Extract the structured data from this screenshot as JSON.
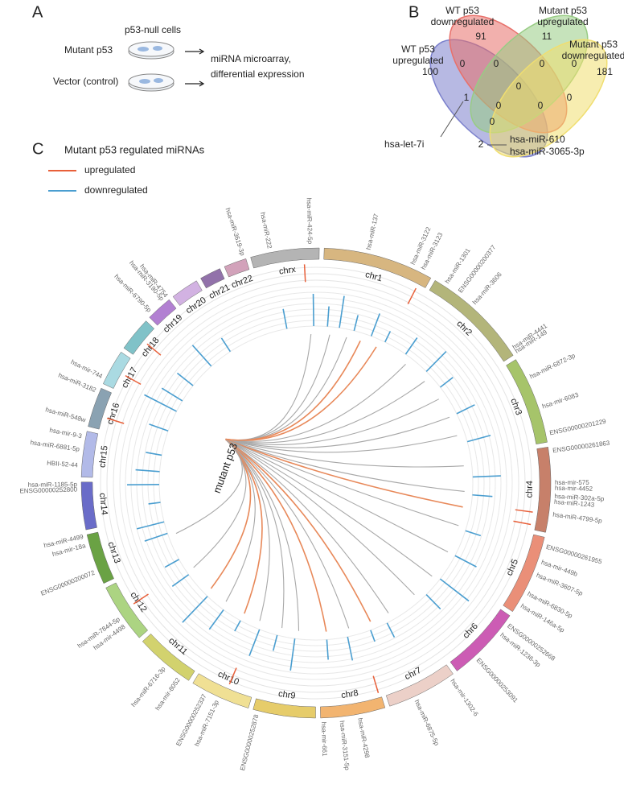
{
  "panel_a": {
    "letter": "A",
    "cells_label": "p53-null cells",
    "rows": [
      "Mutant p53",
      "Vector (control)"
    ],
    "output": [
      "miRNA microarray,",
      "differential expression"
    ]
  },
  "panel_b": {
    "letter": "B",
    "sets": [
      {
        "name": [
          "WT p53",
          "upregulated"
        ],
        "color": "#7b80cc"
      },
      {
        "name": [
          "WT p53",
          "downregulated"
        ],
        "color": "#e8706a"
      },
      {
        "name": [
          "Mutant p53",
          "upregulated"
        ],
        "color": "#98cc84"
      },
      {
        "name": [
          "Mutant p53",
          "downregulated"
        ],
        "color": "#f0de70"
      }
    ],
    "counts": [
      91,
      11,
      100,
      181,
      0,
      0,
      0,
      0,
      0,
      0,
      0,
      1,
      0,
      2,
      0
    ],
    "annotations": [
      "hsa-let-7i",
      "hsa-miR-610",
      "hsa-miR-3065-3p"
    ]
  },
  "panel_c": {
    "letter": "C",
    "legend_title": "Mutant p53 regulated miRNAs",
    "legend": [
      {
        "name": "upregulated",
        "color": "#e8603a"
      },
      {
        "name": "downregulated",
        "color": "#4a9ed0"
      }
    ],
    "link_colors": {
      "up": "#e8895a",
      "down": "#a8a8a8"
    },
    "source_label": "mutant p53",
    "source": {
      "chr": "chr17",
      "pos": 7.5
    },
    "chromosomes": [
      {
        "name": "chr1",
        "length": 249,
        "color": "#d7b680"
      },
      {
        "name": "chr2",
        "length": 243,
        "color": "#b3b57a"
      },
      {
        "name": "chr3",
        "length": 198,
        "color": "#a6c46a"
      },
      {
        "name": "chr4",
        "length": 191,
        "color": "#c7806a"
      },
      {
        "name": "chr5",
        "length": 181,
        "color": "#ea8f78"
      },
      {
        "name": "chr6",
        "length": 171,
        "color": "#cc5cb4"
      },
      {
        "name": "chr7",
        "length": 159,
        "color": "#ecd0c8"
      },
      {
        "name": "chr8",
        "length": 146,
        "color": "#f2b470"
      },
      {
        "name": "chr9",
        "length": 141,
        "color": "#e6cc6a"
      },
      {
        "name": "chr10",
        "length": 136,
        "color": "#f0e094"
      },
      {
        "name": "chr11",
        "length": 135,
        "color": "#d2d26e"
      },
      {
        "name": "chr12",
        "length": 134,
        "color": "#acd482"
      },
      {
        "name": "chr13",
        "length": 115,
        "color": "#6aa244"
      },
      {
        "name": "chr14",
        "length": 107,
        "color": "#6a6cc8"
      },
      {
        "name": "chr15",
        "length": 103,
        "color": "#b2bae8"
      },
      {
        "name": "chr16",
        "length": 90,
        "color": "#8aa2b2"
      },
      {
        "name": "chr17",
        "length": 81,
        "color": "#aadae2"
      },
      {
        "name": "chr18",
        "length": 78,
        "color": "#80c2c8"
      },
      {
        "name": "chr19",
        "length": 59,
        "color": "#b280d2"
      },
      {
        "name": "chr20",
        "length": 63,
        "color": "#d2b2e2"
      },
      {
        "name": "chr21",
        "length": 48,
        "color": "#9272aa"
      },
      {
        "name": "chr22",
        "length": 51,
        "color": "#d2a2ba"
      },
      {
        "name": "chrx",
        "length": 155,
        "color": "#b4b4b4"
      }
    ],
    "up_marks": [
      {
        "chr": "chrx",
        "pos": 120
      },
      {
        "chr": "chr1",
        "pos": 230
      },
      {
        "chr": "chr4",
        "pos": 150
      },
      {
        "chr": "chr4",
        "pos": 180
      },
      {
        "chr": "chr8",
        "pos": 5
      },
      {
        "chr": "chr10",
        "pos": 60
      },
      {
        "chr": "chr12",
        "pos": 70
      },
      {
        "chr": "chr16",
        "pos": 30
      },
      {
        "chr": "chr17",
        "pos": 40
      },
      {
        "chr": "chr18",
        "pos": 40
      }
    ],
    "bars": [
      {
        "chr": "chr1",
        "pos": 20,
        "value": 0.5
      },
      {
        "chr": "chr1",
        "pos": 60,
        "value": 0.8
      },
      {
        "chr": "chr1",
        "pos": 110,
        "value": 0.4
      },
      {
        "chr": "chr1",
        "pos": 170,
        "value": 0.6
      },
      {
        "chr": "chr1",
        "pos": 220,
        "value": 0.3
      },
      {
        "chr": "chr2",
        "pos": 40,
        "value": 0.5
      },
      {
        "chr": "chr2",
        "pos": 130,
        "value": 0.7
      },
      {
        "chr": "chr2",
        "pos": 200,
        "value": 0.4
      },
      {
        "chr": "chr3",
        "pos": 50,
        "value": 0.5
      },
      {
        "chr": "chr3",
        "pos": 150,
        "value": 0.6
      },
      {
        "chr": "chr4",
        "pos": 60,
        "value": 0.7
      },
      {
        "chr": "chr4",
        "pos": 120,
        "value": 0.5
      },
      {
        "chr": "chr5",
        "pos": 40,
        "value": 0.4
      },
      {
        "chr": "chr5",
        "pos": 130,
        "value": 0.6
      },
      {
        "chr": "chr6",
        "pos": 30,
        "value": 0.9
      },
      {
        "chr": "chr6",
        "pos": 100,
        "value": 0.5
      },
      {
        "chr": "chr7",
        "pos": 80,
        "value": 0.4
      },
      {
        "chr": "chr7",
        "pos": 140,
        "value": 0.3
      },
      {
        "chr": "chr8",
        "pos": 50,
        "value": 0.6
      },
      {
        "chr": "chr8",
        "pos": 120,
        "value": 0.5
      },
      {
        "chr": "chr9",
        "pos": 70,
        "value": 0.8
      },
      {
        "chr": "chr9",
        "pos": 130,
        "value": 0.4
      },
      {
        "chr": "chr10",
        "pos": 40,
        "value": 0.7
      },
      {
        "chr": "chr10",
        "pos": 110,
        "value": 0.3
      },
      {
        "chr": "chr11",
        "pos": 30,
        "value": 0.6
      },
      {
        "chr": "chr11",
        "pos": 100,
        "value": 0.9
      },
      {
        "chr": "chr12",
        "pos": 50,
        "value": 0.5
      },
      {
        "chr": "chr12",
        "pos": 110,
        "value": 0.4
      },
      {
        "chr": "chr13",
        "pos": 60,
        "value": 0.6
      },
      {
        "chr": "chr13",
        "pos": 100,
        "value": 0.7
      },
      {
        "chr": "chr14",
        "pos": 40,
        "value": 0.3
      },
      {
        "chr": "chr14",
        "pos": 100,
        "value": 0.8
      },
      {
        "chr": "chr15",
        "pos": 25,
        "value": 0.6
      },
      {
        "chr": "chr15",
        "pos": 80,
        "value": 0.4
      },
      {
        "chr": "chr16",
        "pos": 50,
        "value": 0.5
      },
      {
        "chr": "chr17",
        "pos": 20,
        "value": 0.9
      },
      {
        "chr": "chr17",
        "pos": 60,
        "value": 0.6
      },
      {
        "chr": "chr18",
        "pos": 30,
        "value": 0.5
      },
      {
        "chr": "chr19",
        "pos": 30,
        "value": 0.7
      },
      {
        "chr": "chr20",
        "pos": 40,
        "value": 0.4
      },
      {
        "chr": "chrx",
        "pos": 50,
        "value": 0.5
      },
      {
        "chr": "chrx",
        "pos": 140,
        "value": 0.8
      }
    ],
    "links": [
      {
        "chr": "chr1",
        "pos": 30,
        "reg": "down"
      },
      {
        "chr": "chr1",
        "pos": 90,
        "reg": "down"
      },
      {
        "chr": "chr1",
        "pos": 200,
        "reg": "up"
      },
      {
        "chr": "chr2",
        "pos": 60,
        "reg": "down"
      },
      {
        "chr": "chr2",
        "pos": 150,
        "reg": "down"
      },
      {
        "chr": "chr2",
        "pos": 230,
        "reg": "down"
      },
      {
        "chr": "chr3",
        "pos": 50,
        "reg": "down"
      },
      {
        "chr": "chr3",
        "pos": 120,
        "reg": "down"
      },
      {
        "chr": "chr4",
        "pos": 20,
        "reg": "down"
      },
      {
        "chr": "chr4",
        "pos": 110,
        "reg": "down"
      },
      {
        "chr": "chr4",
        "pos": 165,
        "reg": "up"
      },
      {
        "chr": "chr5",
        "pos": 30,
        "reg": "down"
      },
      {
        "chr": "chr5",
        "pos": 130,
        "reg": "down"
      },
      {
        "chr": "chr6",
        "pos": 40,
        "reg": "down"
      },
      {
        "chr": "chr6",
        "pos": 130,
        "reg": "down"
      },
      {
        "chr": "chr7",
        "pos": 60,
        "reg": "down"
      },
      {
        "chr": "chr7",
        "pos": 130,
        "reg": "up"
      },
      {
        "chr": "chr8",
        "pos": 40,
        "reg": "down"
      },
      {
        "chr": "chr8",
        "pos": 120,
        "reg": "up"
      },
      {
        "chr": "chr9",
        "pos": 60,
        "reg": "down"
      },
      {
        "chr": "chr9",
        "pos": 120,
        "reg": "down"
      },
      {
        "chr": "chr10",
        "pos": 50,
        "reg": "down"
      },
      {
        "chr": "chr10",
        "pos": 110,
        "reg": "up"
      },
      {
        "chr": "chr11",
        "pos": 40,
        "reg": "down"
      },
      {
        "chr": "chr11",
        "pos": 110,
        "reg": "up"
      },
      {
        "chr": "chr12",
        "pos": 60,
        "reg": "down"
      },
      {
        "chr": "chr13",
        "pos": 50,
        "reg": "down"
      },
      {
        "chr": "chrx",
        "pos": 130,
        "reg": "down"
      },
      {
        "chr": "chr1",
        "pos": 140,
        "reg": "up"
      }
    ],
    "gene_labels": [
      {
        "chr": "chr1",
        "pos": 98,
        "label": "hsa-miR-137"
      },
      {
        "chr": "chr1",
        "pos": 200,
        "label": "hsa-miR-3122"
      },
      {
        "chr": "chr1",
        "pos": 225,
        "label": "hsa-miR-3123"
      },
      {
        "chr": "chr2",
        "pos": 25,
        "label": "hsa-miR-1301"
      },
      {
        "chr": "chr2",
        "pos": 60,
        "label": "ENSG00000200377"
      },
      {
        "chr": "chr2",
        "pos": 100,
        "label": "hsa-miR-3606"
      },
      {
        "chr": "chr2",
        "pos": 230,
        "label": "hsa-miR-4441"
      },
      {
        "chr": "chr2",
        "pos": 240,
        "label": "hsa-miR-149"
      },
      {
        "chr": "chr3",
        "pos": 50,
        "label": "hsa-miR-6872-3p"
      },
      {
        "chr": "chr3",
        "pos": 120,
        "label": "hsa-mir-6083"
      },
      {
        "chr": "chr3",
        "pos": 180,
        "label": "ENSG00000201229"
      },
      {
        "chr": "chr4",
        "pos": 10,
        "label": "ENSG00000261863"
      },
      {
        "chr": "chr4",
        "pos": 80,
        "label": "hsa-mir-575"
      },
      {
        "chr": "chr4",
        "pos": 92,
        "label": "hsa-mir-4452"
      },
      {
        "chr": "chr4",
        "pos": 110,
        "label": "hsa-miR-302a-5p"
      },
      {
        "chr": "chr4",
        "pos": 122,
        "label": "hsa-miR-1243"
      },
      {
        "chr": "chr4",
        "pos": 150,
        "label": "hsa-miR-4799-5p"
      },
      {
        "chr": "chr5",
        "pos": 20,
        "label": "ENSG00000261955"
      },
      {
        "chr": "chr5",
        "pos": 55,
        "label": "hsa-mir-449b"
      },
      {
        "chr": "chr5",
        "pos": 85,
        "label": "hsa-miR-3607-5p"
      },
      {
        "chr": "chr5",
        "pos": 130,
        "label": "hsa-miR-6830-5p"
      },
      {
        "chr": "chr5",
        "pos": 160,
        "label": "hsa-miR-146a-5p"
      },
      {
        "chr": "chr6",
        "pos": 20,
        "label": "ENSG00000252668"
      },
      {
        "chr": "chr6",
        "pos": 45,
        "label": "hsa-miR-1236-3p"
      },
      {
        "chr": "chr6",
        "pos": 120,
        "label": "ENSG00000253091"
      },
      {
        "chr": "chr7",
        "pos": 10,
        "label": "hsa-mir-1302-6"
      },
      {
        "chr": "chr7",
        "pos": 100,
        "label": "hsa-miR-6875-5p"
      },
      {
        "chr": "chr8",
        "pos": 60,
        "label": "hsa-miR-4298"
      },
      {
        "chr": "chr8",
        "pos": 100,
        "label": "hsa-miR-3151-5p"
      },
      {
        "chr": "chr8",
        "pos": 140,
        "label": "hsa-mir-661"
      },
      {
        "chr": "chr9",
        "pos": 130,
        "label": "ENSG00000252878"
      },
      {
        "chr": "chr10",
        "pos": 70,
        "label": "hsa-miR-7151-3p"
      },
      {
        "chr": "chr10",
        "pos": 100,
        "label": "ENSG00000252337"
      },
      {
        "chr": "chr11",
        "pos": 20,
        "label": "hsa-mir-8052"
      },
      {
        "chr": "chr11",
        "pos": 60,
        "label": "hsa-miR-6716-3p"
      },
      {
        "chr": "chr12",
        "pos": 40,
        "label": "hsa-mir-4498"
      },
      {
        "chr": "chr12",
        "pos": 60,
        "label": "hsa-miR-7844-5p"
      },
      {
        "chr": "chr13",
        "pos": 30,
        "label": "ENSG00000200072"
      },
      {
        "chr": "chr13",
        "pos": 92,
        "label": "hsa-mir-18a"
      },
      {
        "chr": "chr13",
        "pos": 112,
        "label": "hsa-miR-4499"
      },
      {
        "chr": "chr14",
        "pos": 90,
        "label": "ENSG00000252800"
      },
      {
        "chr": "chr14",
        "pos": 101,
        "label": "hsa-miR-1185-5p"
      },
      {
        "chr": "chr15",
        "pos": 25,
        "label": "HBII-52-44"
      },
      {
        "chr": "chr15",
        "pos": 60,
        "label": "hsa-miR-6881-5p"
      },
      {
        "chr": "chr15",
        "pos": 89,
        "label": "hsa-mir-9-3"
      },
      {
        "chr": "chr16",
        "pos": 11,
        "label": "hsa-miR-548w"
      },
      {
        "chr": "chr16",
        "pos": 80,
        "label": "hsa-miR-3182"
      },
      {
        "chr": "chr17",
        "pos": 12,
        "label": "hsa-mir-744"
      },
      {
        "chr": "chr19",
        "pos": 10,
        "label": "hsa-miR-6790-5p"
      },
      {
        "chr": "chr19",
        "pos": 47,
        "label": "hsa-miR-3190-5p"
      },
      {
        "chr": "chr19",
        "pos": 58,
        "label": "hsa-miR-4754"
      },
      {
        "chr": "chr22",
        "pos": 46,
        "label": "hsa-miR-3619-3p"
      },
      {
        "chr": "chrx",
        "pos": 45,
        "label": "hsa-miR-222"
      },
      {
        "chr": "chrx",
        "pos": 134,
        "label": "hsa-miR-424-5p"
      }
    ]
  }
}
